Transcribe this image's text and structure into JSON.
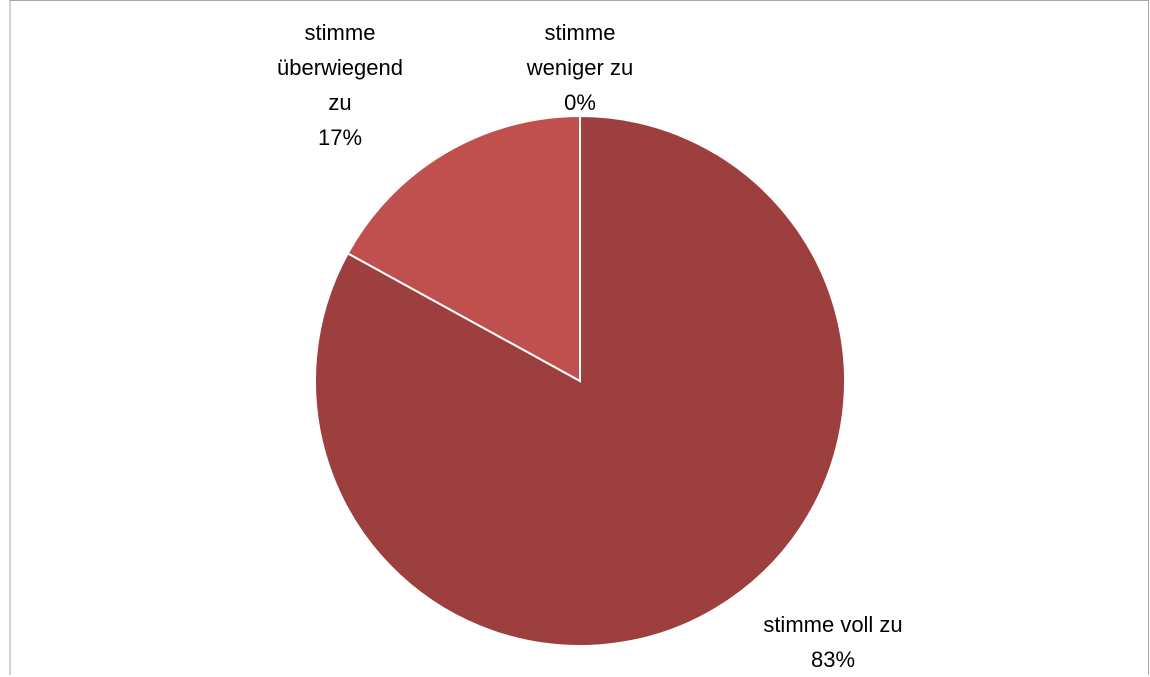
{
  "chart_data": {
    "type": "pie",
    "categories": [
      "stimme voll zu",
      "stimme überwiegend zu",
      "stimme weniger zu"
    ],
    "values": [
      83,
      17,
      0
    ],
    "value_labels": [
      "83%",
      "17%",
      "0%"
    ],
    "colors": [
      "#9e3f3f",
      "#c0504d",
      "#d9807e"
    ]
  }
}
